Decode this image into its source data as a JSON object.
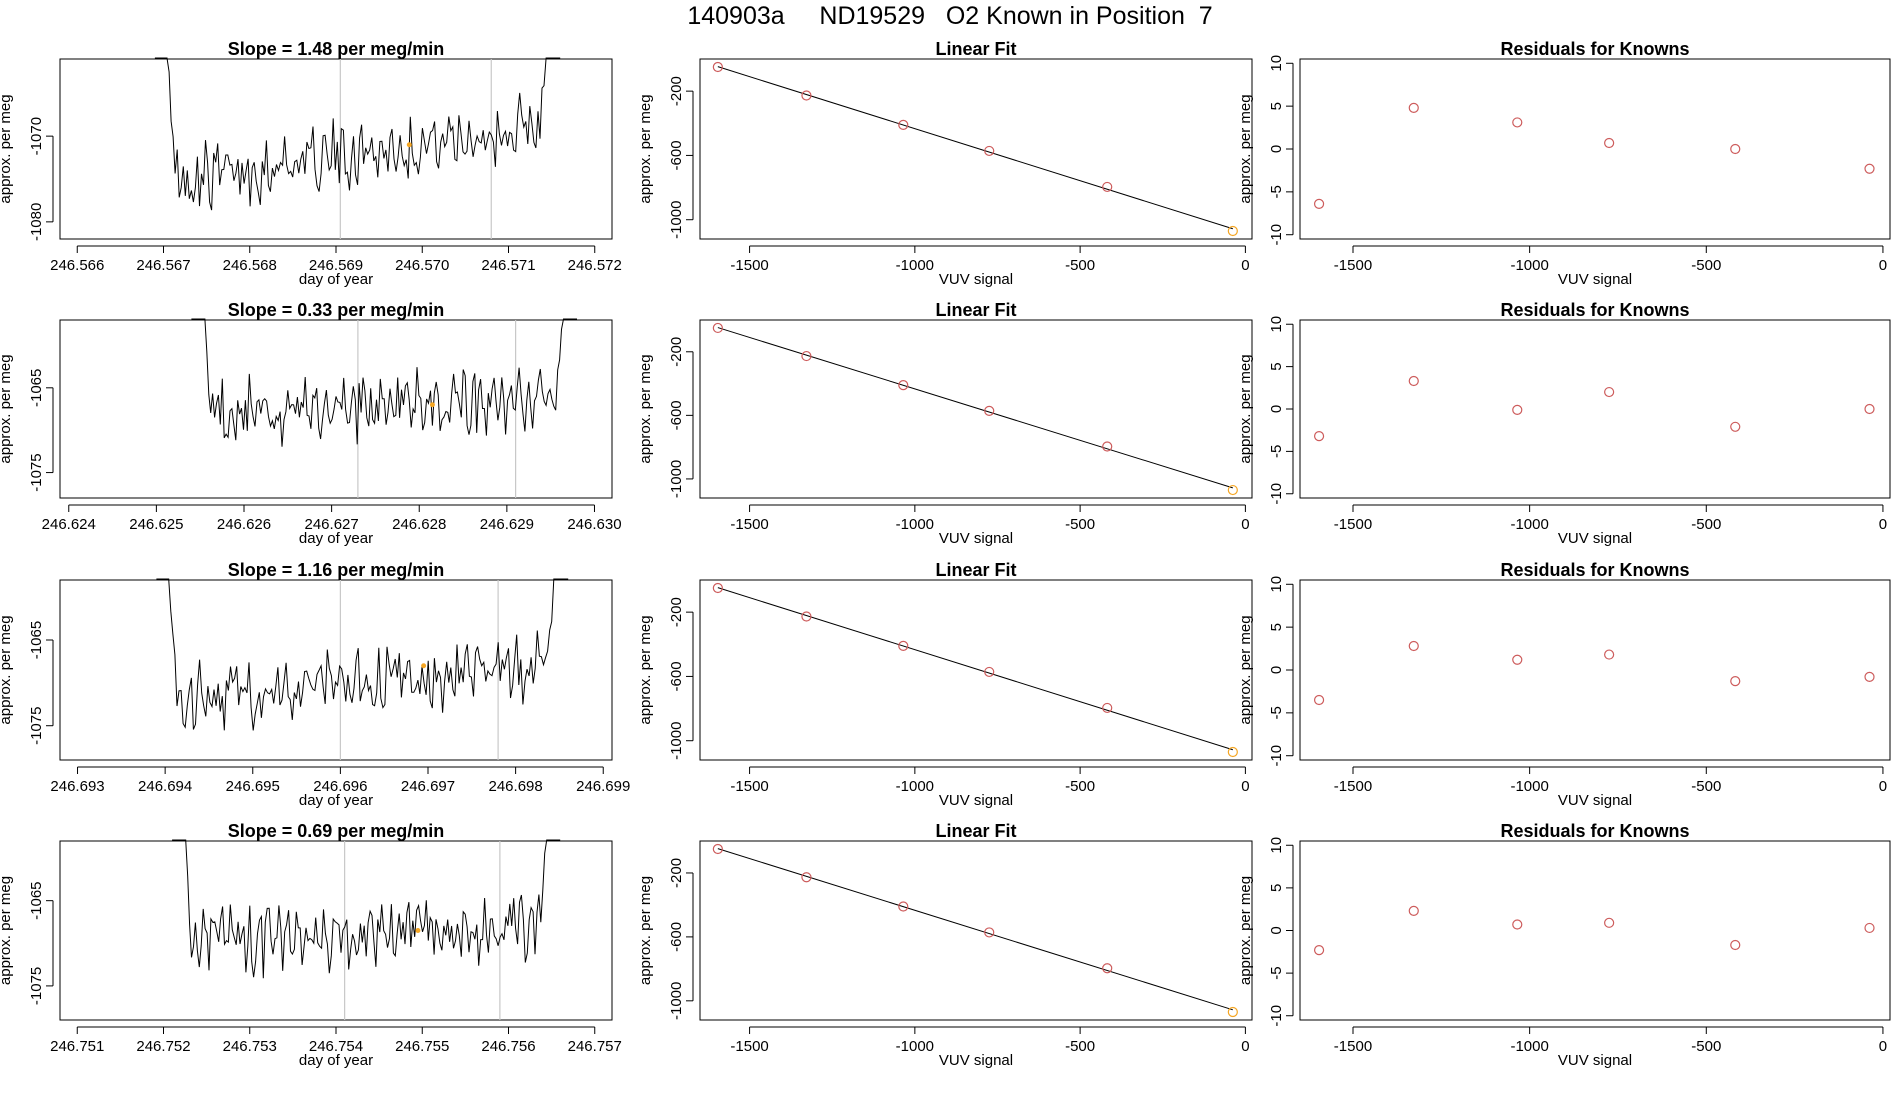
{
  "title": "140903a     ND19529   O2 Known in Position  7",
  "colors": {
    "trace": "#000000",
    "points": "#cd5c5c",
    "highlight": "#f5a623",
    "vline": "#c8c8c8"
  },
  "chart_data": [
    {
      "type": "line",
      "title": "Slope =  1.48  per meg/min",
      "xlabel": "day of year",
      "ylabel": "approx. per meg",
      "xticks": [
        "246.566",
        "246.567",
        "246.568",
        "246.569",
        "246.570",
        "246.571",
        "246.572"
      ],
      "xlim": [
        246.5658,
        246.5722
      ],
      "yticks": [
        -1080,
        -1070
      ],
      "ylim": [
        -1082,
        -1061
      ],
      "trace_start": 246.5669,
      "trace_end": 246.5716,
      "baseline_start": -1075.5,
      "baseline_end": -1068.5,
      "vlines": [
        246.56905,
        246.5708
      ],
      "highlight": [
        246.56985,
        -1071
      ]
    },
    {
      "type": "scatter",
      "title": "Linear Fit",
      "xlabel": "VUV signal",
      "ylabel": "approx. per meg",
      "xticks": [
        "-1500",
        "-1000",
        "-500",
        "0"
      ],
      "xlim": [
        -1650,
        20
      ],
      "yticks": [
        -1000,
        -600,
        -200
      ],
      "ylim": [
        -1120,
        0
      ],
      "x": [
        -1596,
        -1328,
        -1035,
        -775,
        -418,
        -38
      ],
      "y": [
        -50,
        -227,
        -410,
        -572,
        -796,
        -1070
      ]
    },
    {
      "type": "scatter",
      "title": "Residuals for Knowns",
      "xlabel": "VUV signal",
      "ylabel": "approx. per meg",
      "xticks": [
        "-1500",
        "-1000",
        "-500",
        "0"
      ],
      "xlim": [
        -1650,
        20
      ],
      "yticks": [
        "-10",
        "-5",
        "0",
        "5",
        "10"
      ],
      "ylim": [
        -10.5,
        10.5
      ],
      "x": [
        -1596,
        -1328,
        -1035,
        -775,
        -418,
        -38
      ],
      "y": [
        -6.4,
        4.8,
        3.1,
        0.7,
        0.0,
        -2.3
      ]
    },
    {
      "type": "line",
      "title": "Slope =  0.33  per meg/min",
      "xlabel": "day of year",
      "ylabel": "approx. per meg",
      "xticks": [
        "246.624",
        "246.625",
        "246.626",
        "246.627",
        "246.628",
        "246.629",
        "246.630"
      ],
      "xlim": [
        246.6239,
        246.6302
      ],
      "yticks": [
        -1075,
        -1065
      ],
      "ylim": [
        -1078,
        -1057
      ],
      "trace_start": 246.6254,
      "trace_end": 246.6298,
      "baseline_start": -1068,
      "baseline_end": -1066,
      "vlines": [
        246.6273,
        246.6291
      ],
      "highlight": [
        246.62815,
        -1067
      ]
    },
    {
      "type": "scatter",
      "title": "Linear Fit",
      "xlabel": "VUV signal",
      "ylabel": "approx. per meg",
      "xticks": [
        "-1500",
        "-1000",
        "-500",
        "0"
      ],
      "xlim": [
        -1650,
        20
      ],
      "yticks": [
        -1000,
        -600,
        -200
      ],
      "ylim": [
        -1120,
        0
      ],
      "x": [
        -1596,
        -1328,
        -1035,
        -775,
        -418,
        -38
      ],
      "y": [
        -50,
        -227,
        -410,
        -572,
        -796,
        -1070
      ]
    },
    {
      "type": "scatter",
      "title": "Residuals for Knowns",
      "xlabel": "VUV signal",
      "ylabel": "approx. per meg",
      "xticks": [
        "-1500",
        "-1000",
        "-500",
        "0"
      ],
      "xlim": [
        -1650,
        20
      ],
      "yticks": [
        "-10",
        "-5",
        "0",
        "5",
        "10"
      ],
      "ylim": [
        -10.5,
        10.5
      ],
      "x": [
        -1596,
        -1328,
        -1035,
        -775,
        -418,
        -38
      ],
      "y": [
        -3.2,
        3.3,
        -0.1,
        2.0,
        -2.1,
        0.0
      ]
    },
    {
      "type": "line",
      "title": "Slope =  1.16  per meg/min",
      "xlabel": "day of year",
      "ylabel": "approx. per meg",
      "xticks": [
        "246.693",
        "246.694",
        "246.695",
        "246.696",
        "246.697",
        "246.698",
        "246.699"
      ],
      "xlim": [
        246.6928,
        246.6991
      ],
      "yticks": [
        -1075,
        -1065
      ],
      "ylim": [
        -1079,
        -1058
      ],
      "trace_start": 246.6939,
      "trace_end": 246.6986,
      "baseline_start": -1072,
      "baseline_end": -1068,
      "vlines": [
        246.696,
        246.6978
      ],
      "highlight": [
        246.69695,
        -1068
      ]
    },
    {
      "type": "scatter",
      "title": "Linear Fit",
      "xlabel": "VUV signal",
      "ylabel": "approx. per meg",
      "xticks": [
        "-1500",
        "-1000",
        "-500",
        "0"
      ],
      "xlim": [
        -1650,
        20
      ],
      "yticks": [
        -1000,
        -600,
        -200
      ],
      "ylim": [
        -1120,
        0
      ],
      "x": [
        -1596,
        -1328,
        -1035,
        -775,
        -418,
        -38
      ],
      "y": [
        -50,
        -227,
        -410,
        -572,
        -796,
        -1070
      ]
    },
    {
      "type": "scatter",
      "title": "Residuals for Knowns",
      "xlabel": "VUV signal",
      "ylabel": "approx. per meg",
      "xticks": [
        "-1500",
        "-1000",
        "-500",
        "0"
      ],
      "xlim": [
        -1650,
        20
      ],
      "yticks": [
        "-10",
        "-5",
        "0",
        "5",
        "10"
      ],
      "ylim": [
        -10.5,
        10.5
      ],
      "x": [
        -1596,
        -1328,
        -1035,
        -775,
        -418,
        -38
      ],
      "y": [
        -3.5,
        2.8,
        1.2,
        1.8,
        -1.3,
        -0.8
      ]
    },
    {
      "type": "line",
      "title": "Slope =  0.69  per meg/min",
      "xlabel": "day of year",
      "ylabel": "approx. per meg",
      "xticks": [
        "246.751",
        "246.752",
        "246.753",
        "246.754",
        "246.755",
        "246.756",
        "246.757"
      ],
      "xlim": [
        246.7508,
        246.7572
      ],
      "yticks": [
        -1075,
        -1065
      ],
      "ylim": [
        -1079,
        -1058
      ],
      "trace_start": 246.7521,
      "trace_end": 246.7566,
      "baseline_start": -1070,
      "baseline_end": -1068,
      "vlines": [
        246.7541,
        246.7559
      ],
      "highlight": [
        246.75495,
        -1068.5
      ]
    },
    {
      "type": "scatter",
      "title": "Linear Fit",
      "xlabel": "VUV signal",
      "ylabel": "approx. per meg",
      "xticks": [
        "-1500",
        "-1000",
        "-500",
        "0"
      ],
      "xlim": [
        -1650,
        20
      ],
      "yticks": [
        -1000,
        -600,
        -200
      ],
      "ylim": [
        -1120,
        0
      ],
      "x": [
        -1596,
        -1328,
        -1035,
        -775,
        -418,
        -38
      ],
      "y": [
        -50,
        -227,
        -410,
        -572,
        -796,
        -1070
      ]
    },
    {
      "type": "scatter",
      "title": "Residuals for Knowns",
      "xlabel": "VUV signal",
      "ylabel": "approx. per meg",
      "xticks": [
        "-1500",
        "-1000",
        "-500",
        "0"
      ],
      "xlim": [
        -1650,
        20
      ],
      "yticks": [
        "-10",
        "-5",
        "0",
        "5",
        "10"
      ],
      "ylim": [
        -10.5,
        10.5
      ],
      "x": [
        -1596,
        -1328,
        -1035,
        -775,
        -418,
        -38
      ],
      "y": [
        -2.3,
        2.3,
        0.7,
        0.9,
        -1.7,
        0.3
      ]
    }
  ]
}
